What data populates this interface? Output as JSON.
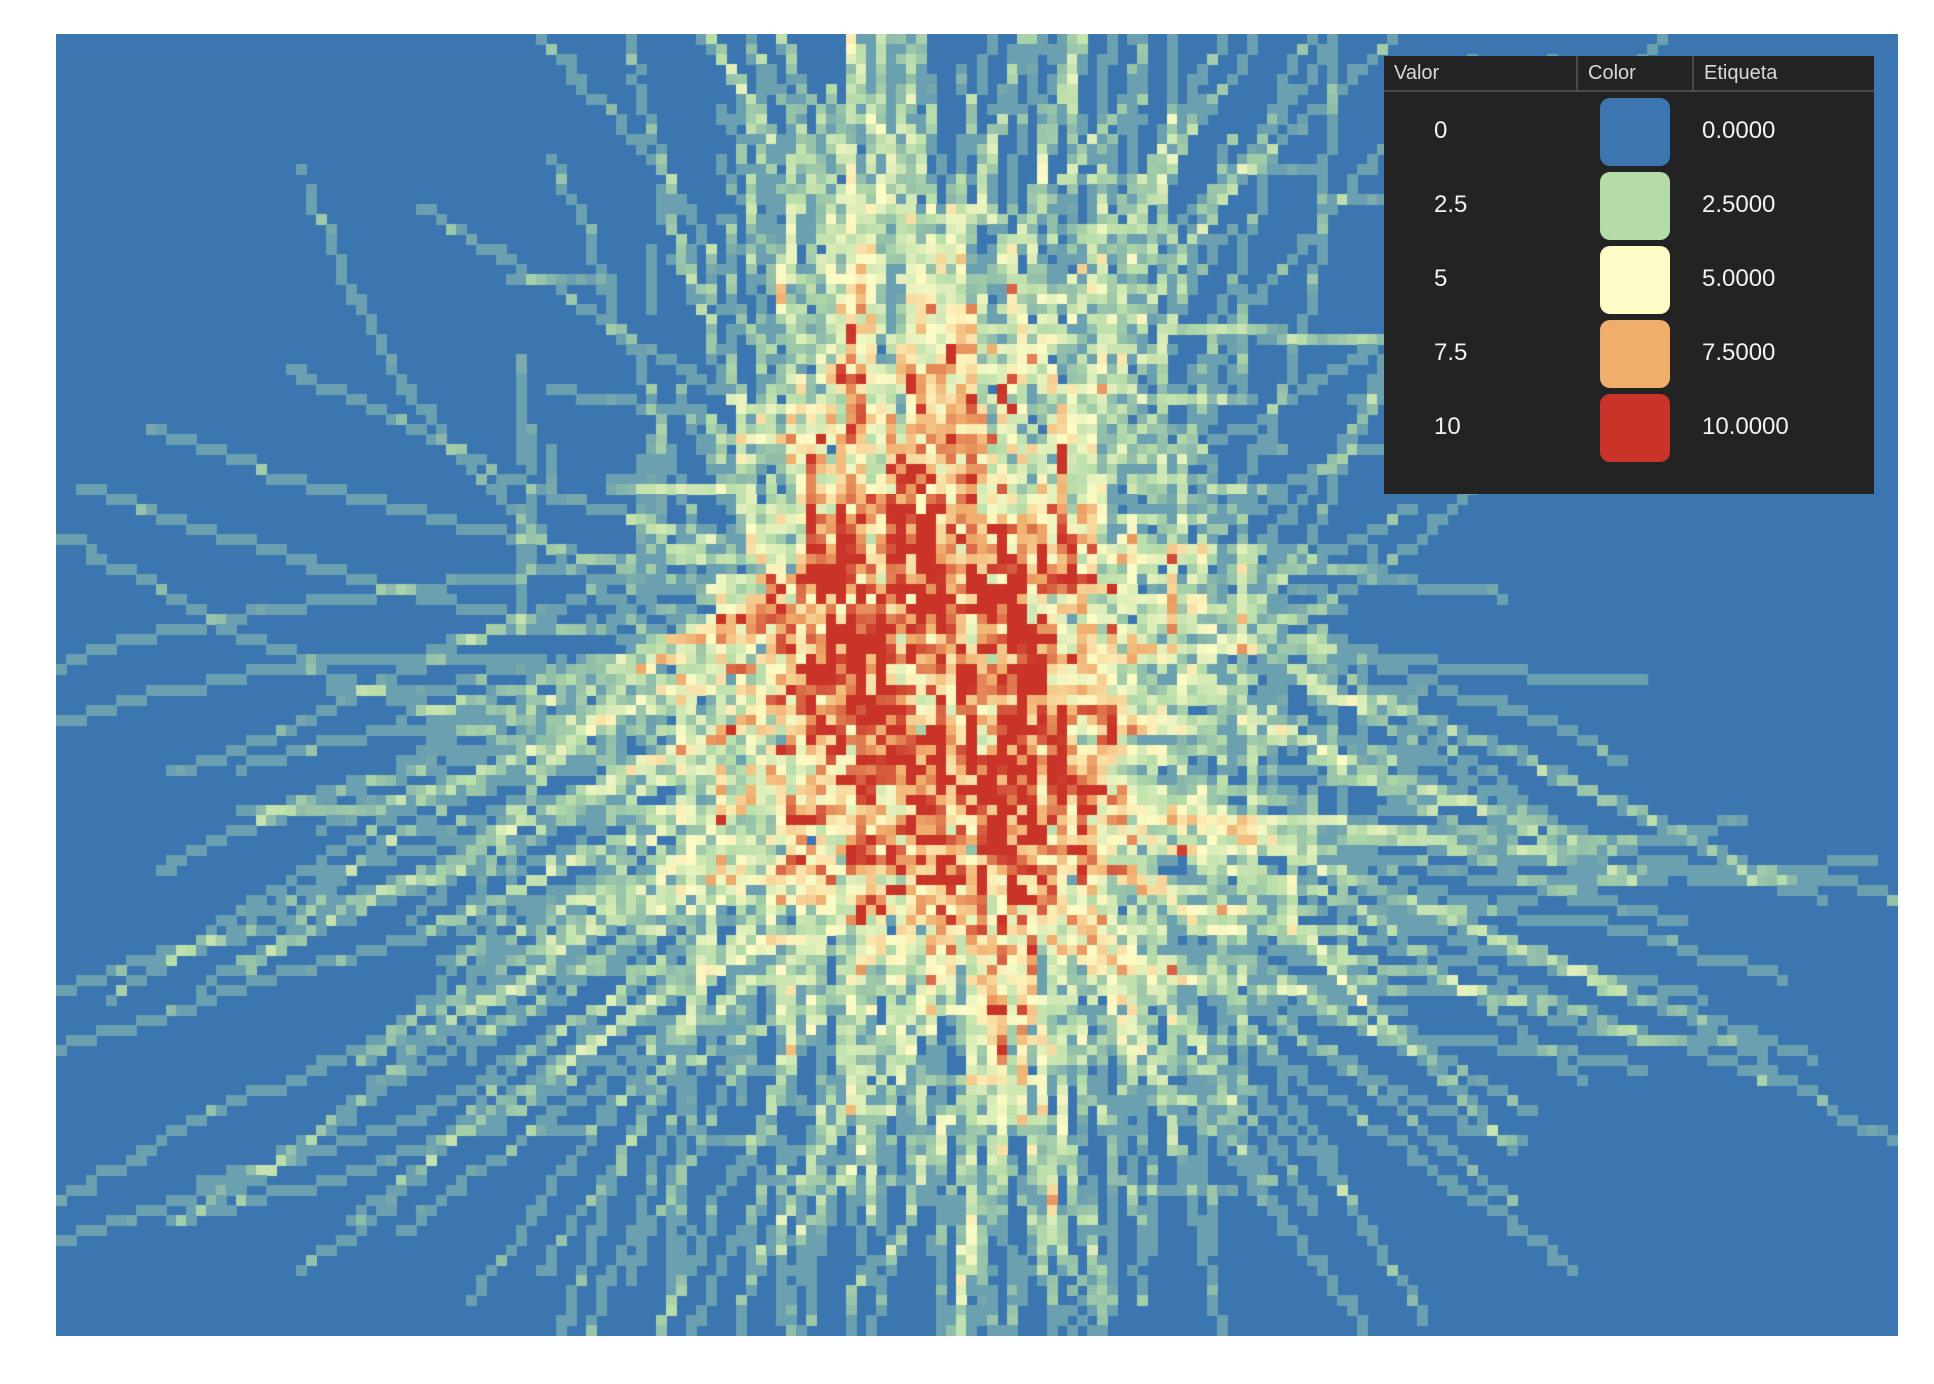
{
  "raster": {
    "background_color": "#3b76b0",
    "grid_columns": 184,
    "grid_rows": 130,
    "min_value": 0,
    "max_value": 10,
    "color_ramp": [
      "#3b76b0",
      "#b4dba8",
      "#fefcc6",
      "#f0ae6d",
      "#c93328"
    ],
    "edge_color": "#6aa0b0"
  },
  "legend": {
    "headers": {
      "value": "Valor",
      "color": "Color",
      "label": "Etiqueta"
    },
    "rows": [
      {
        "value": "0",
        "color": "#3b76b0",
        "label": "0.0000"
      },
      {
        "value": "2.5",
        "color": "#b4dba8",
        "label": "2.5000"
      },
      {
        "value": "5",
        "color": "#fefcc6",
        "label": "5.0000"
      },
      {
        "value": "7.5",
        "color": "#f0ae6d",
        "label": "7.5000"
      },
      {
        "value": "10",
        "color": "#c93328",
        "label": "10.0000"
      }
    ]
  }
}
